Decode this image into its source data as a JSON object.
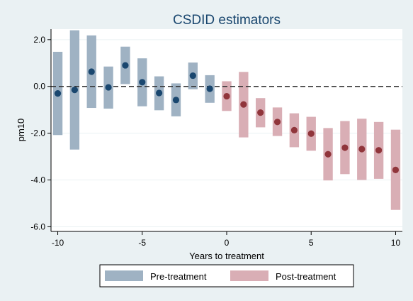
{
  "chart_data": {
    "type": "scatter",
    "title": "CSDID estimators",
    "xlabel": "Years to treatment",
    "ylabel": "pm10",
    "xlim": [
      -10.4,
      10.4
    ],
    "ylim": [
      -6.2,
      2.45
    ],
    "xticks": [
      -10,
      -5,
      0,
      5,
      10
    ],
    "yticks": [
      2.0,
      0.0,
      -2.0,
      -4.0,
      -6.0
    ],
    "xtick_labels": [
      "-10",
      "-5",
      "0",
      "5",
      "10"
    ],
    "ytick_labels": [
      "2.0",
      "0.0",
      "-2.0",
      "-4.0",
      "-6.0"
    ],
    "reference_line": {
      "y": 0,
      "style": "dashed"
    },
    "grid": "horizontal",
    "legend_position": "bottom",
    "colors": {
      "pre_bar": "#9fb2c3",
      "pre_point": "#1a476f",
      "post_bar": "#d9aeb5",
      "post_point": "#90353b"
    },
    "series": [
      {
        "name": "Pre-treatment",
        "points": [
          {
            "x": -10,
            "y": -0.3,
            "lo": -2.08,
            "hi": 1.48
          },
          {
            "x": -9,
            "y": -0.15,
            "lo": -2.7,
            "hi": 2.4
          },
          {
            "x": -8,
            "y": 0.63,
            "lo": -0.92,
            "hi": 2.18
          },
          {
            "x": -7,
            "y": -0.04,
            "lo": -0.95,
            "hi": 0.85
          },
          {
            "x": -6,
            "y": 0.9,
            "lo": 0.1,
            "hi": 1.7
          },
          {
            "x": -5,
            "y": 0.18,
            "lo": -0.85,
            "hi": 1.2
          },
          {
            "x": -4,
            "y": -0.28,
            "lo": -1.02,
            "hi": 0.43
          },
          {
            "x": -3,
            "y": -0.58,
            "lo": -1.28,
            "hi": 0.13
          },
          {
            "x": -2,
            "y": 0.46,
            "lo": -0.12,
            "hi": 1.02
          },
          {
            "x": -1,
            "y": -0.1,
            "lo": -0.7,
            "hi": 0.48
          }
        ]
      },
      {
        "name": "Post-treatment",
        "points": [
          {
            "x": 0,
            "y": -0.42,
            "lo": -1.05,
            "hi": 0.22
          },
          {
            "x": 1,
            "y": -0.77,
            "lo": -2.18,
            "hi": 0.62
          },
          {
            "x": 2,
            "y": -1.12,
            "lo": -1.75,
            "hi": -0.5
          },
          {
            "x": 3,
            "y": -1.52,
            "lo": -2.12,
            "hi": -0.9
          },
          {
            "x": 4,
            "y": -1.87,
            "lo": -2.6,
            "hi": -1.15
          },
          {
            "x": 5,
            "y": -2.02,
            "lo": -2.75,
            "hi": -1.3
          },
          {
            "x": 6,
            "y": -2.9,
            "lo": -4.02,
            "hi": -1.78
          },
          {
            "x": 7,
            "y": -2.62,
            "lo": -3.75,
            "hi": -1.48
          },
          {
            "x": 8,
            "y": -2.68,
            "lo": -4.0,
            "hi": -1.38
          },
          {
            "x": 9,
            "y": -2.73,
            "lo": -3.95,
            "hi": -1.52
          },
          {
            "x": 10,
            "y": -3.57,
            "lo": -5.28,
            "hi": -1.85
          }
        ]
      }
    ]
  }
}
